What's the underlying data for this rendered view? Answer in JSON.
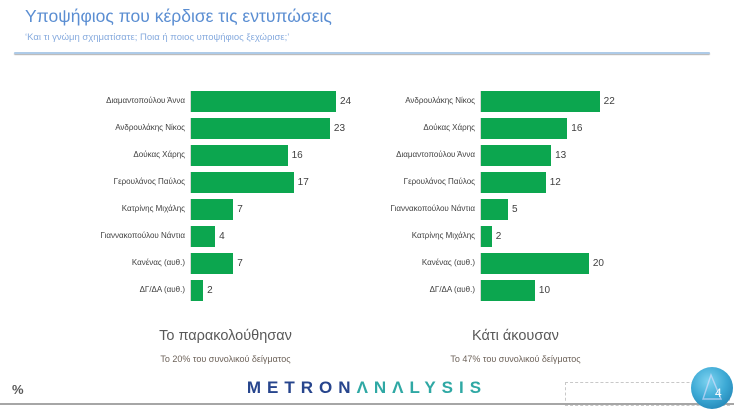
{
  "header": {
    "title": "Υποψήφιος που κέρδισε τις εντυπώσεις",
    "subtitle": "‘Και τι γνώμη σχηματίσατε; Ποια ή ποιος υποψήφιος ξεχώρισε;’"
  },
  "chart_data": [
    {
      "type": "bar",
      "orientation": "horizontal",
      "title": "Το παρακολούθησαν",
      "subtitle": "Το 20% του συνολικού δείγματος",
      "unit": "%",
      "categories": [
        "Διαμαντοπούλου Άννα",
        "Ανδρουλάκης Νίκος",
        "Δούκας Χάρης",
        "Γερουλάνος Παύλος",
        "Κατρίνης Μιχάλης",
        "Γιαννακοπούλου Νάντια",
        "Κανένας (αυθ.)",
        "ΔΓ/ΔΑ (αυθ.)"
      ],
      "values": [
        24,
        23,
        16,
        17,
        7,
        4,
        7,
        2
      ],
      "xlim": [
        0,
        25
      ],
      "bar_color": "#0CA64F",
      "grid": false,
      "legend": false,
      "data_labels": true
    },
    {
      "type": "bar",
      "orientation": "horizontal",
      "title": "Κάτι άκουσαν",
      "subtitle": "Το 47% του συνολικού δείγματος",
      "unit": "%",
      "categories": [
        "Ανδρουλάκης Νίκος",
        "Δούκας Χάρης",
        "Διαμαντοπούλου Άννα",
        "Γερουλάνος Παύλος",
        "Γιαννακοπούλου Νάντια",
        "Κατρίνης Μιχάλης",
        "Κανένας (αυθ.)",
        "ΔΓ/ΔΑ (αυθ.)"
      ],
      "values": [
        22,
        16,
        13,
        12,
        5,
        2,
        20,
        10
      ],
      "xlim": [
        0,
        28
      ],
      "bar_color": "#0CA64F",
      "grid": false,
      "legend": false,
      "data_labels": true
    }
  ],
  "footer": {
    "percent_label": "%",
    "brand_primary": "METRON",
    "brand_secondary": "ΛNΛLYSIS",
    "page_number": "4"
  },
  "colors": {
    "bar_green": "#0CA64F",
    "title_blue": "#5B8ED2",
    "subtitle_blue": "#87ABDE",
    "brand_navy": "#27458D",
    "brand_teal": "#2FA8A4",
    "caption_gray": "#595959"
  }
}
